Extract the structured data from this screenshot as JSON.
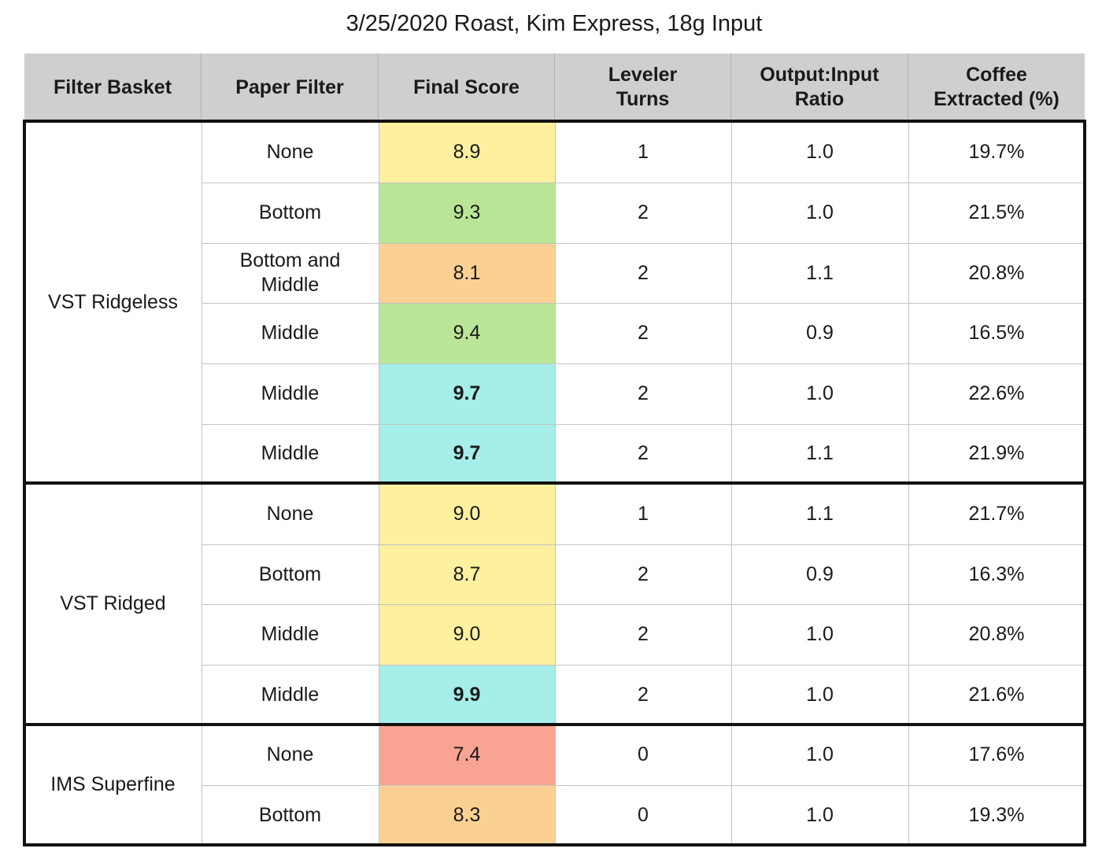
{
  "title": "3/25/2020 Roast, Kim Express, 18g Input",
  "columns": [
    "Filter Basket",
    "Paper Filter",
    "Final Score",
    "Leveler\nTurns",
    "Output:Input\nRatio",
    "Coffee\nExtracted (%)"
  ],
  "score_colors": {
    "yellow": "#fdf09f",
    "green": "#b9e696",
    "orange": "#fbd193",
    "cyan": "#a5eee9",
    "red": "#f9a493"
  },
  "groups": [
    {
      "basket": "VST Ridgeless",
      "rows": [
        {
          "paper": "None",
          "score": "8.9",
          "score_color": "yellow",
          "bold": false,
          "turns": "1",
          "ratio": "1.0",
          "extracted": "19.7%"
        },
        {
          "paper": "Bottom",
          "score": "9.3",
          "score_color": "green",
          "bold": false,
          "turns": "2",
          "ratio": "1.0",
          "extracted": "21.5%"
        },
        {
          "paper": "Bottom and\nMiddle",
          "score": "8.1",
          "score_color": "orange",
          "bold": false,
          "turns": "2",
          "ratio": "1.1",
          "extracted": "20.8%"
        },
        {
          "paper": "Middle",
          "score": "9.4",
          "score_color": "green",
          "bold": false,
          "turns": "2",
          "ratio": "0.9",
          "extracted": "16.5%"
        },
        {
          "paper": "Middle",
          "score": "9.7",
          "score_color": "cyan",
          "bold": true,
          "turns": "2",
          "ratio": "1.0",
          "extracted": "22.6%"
        },
        {
          "paper": "Middle",
          "score": "9.7",
          "score_color": "cyan",
          "bold": true,
          "turns": "2",
          "ratio": "1.1",
          "extracted": "21.9%"
        }
      ]
    },
    {
      "basket": "VST Ridged",
      "rows": [
        {
          "paper": "None",
          "score": "9.0",
          "score_color": "yellow",
          "bold": false,
          "turns": "1",
          "ratio": "1.1",
          "extracted": "21.7%"
        },
        {
          "paper": "Bottom",
          "score": "8.7",
          "score_color": "yellow",
          "bold": false,
          "turns": "2",
          "ratio": "0.9",
          "extracted": "16.3%"
        },
        {
          "paper": "Middle",
          "score": "9.0",
          "score_color": "yellow",
          "bold": false,
          "turns": "2",
          "ratio": "1.0",
          "extracted": "20.8%"
        },
        {
          "paper": "Middle",
          "score": "9.9",
          "score_color": "cyan",
          "bold": true,
          "turns": "2",
          "ratio": "1.0",
          "extracted": "21.6%"
        }
      ]
    },
    {
      "basket": "IMS Superfine",
      "rows": [
        {
          "paper": "None",
          "score": "7.4",
          "score_color": "red",
          "bold": false,
          "turns": "0",
          "ratio": "1.0",
          "extracted": "17.6%"
        },
        {
          "paper": "Bottom",
          "score": "8.3",
          "score_color": "orange",
          "bold": false,
          "turns": "0",
          "ratio": "1.0",
          "extracted": "19.3%"
        }
      ]
    }
  ]
}
